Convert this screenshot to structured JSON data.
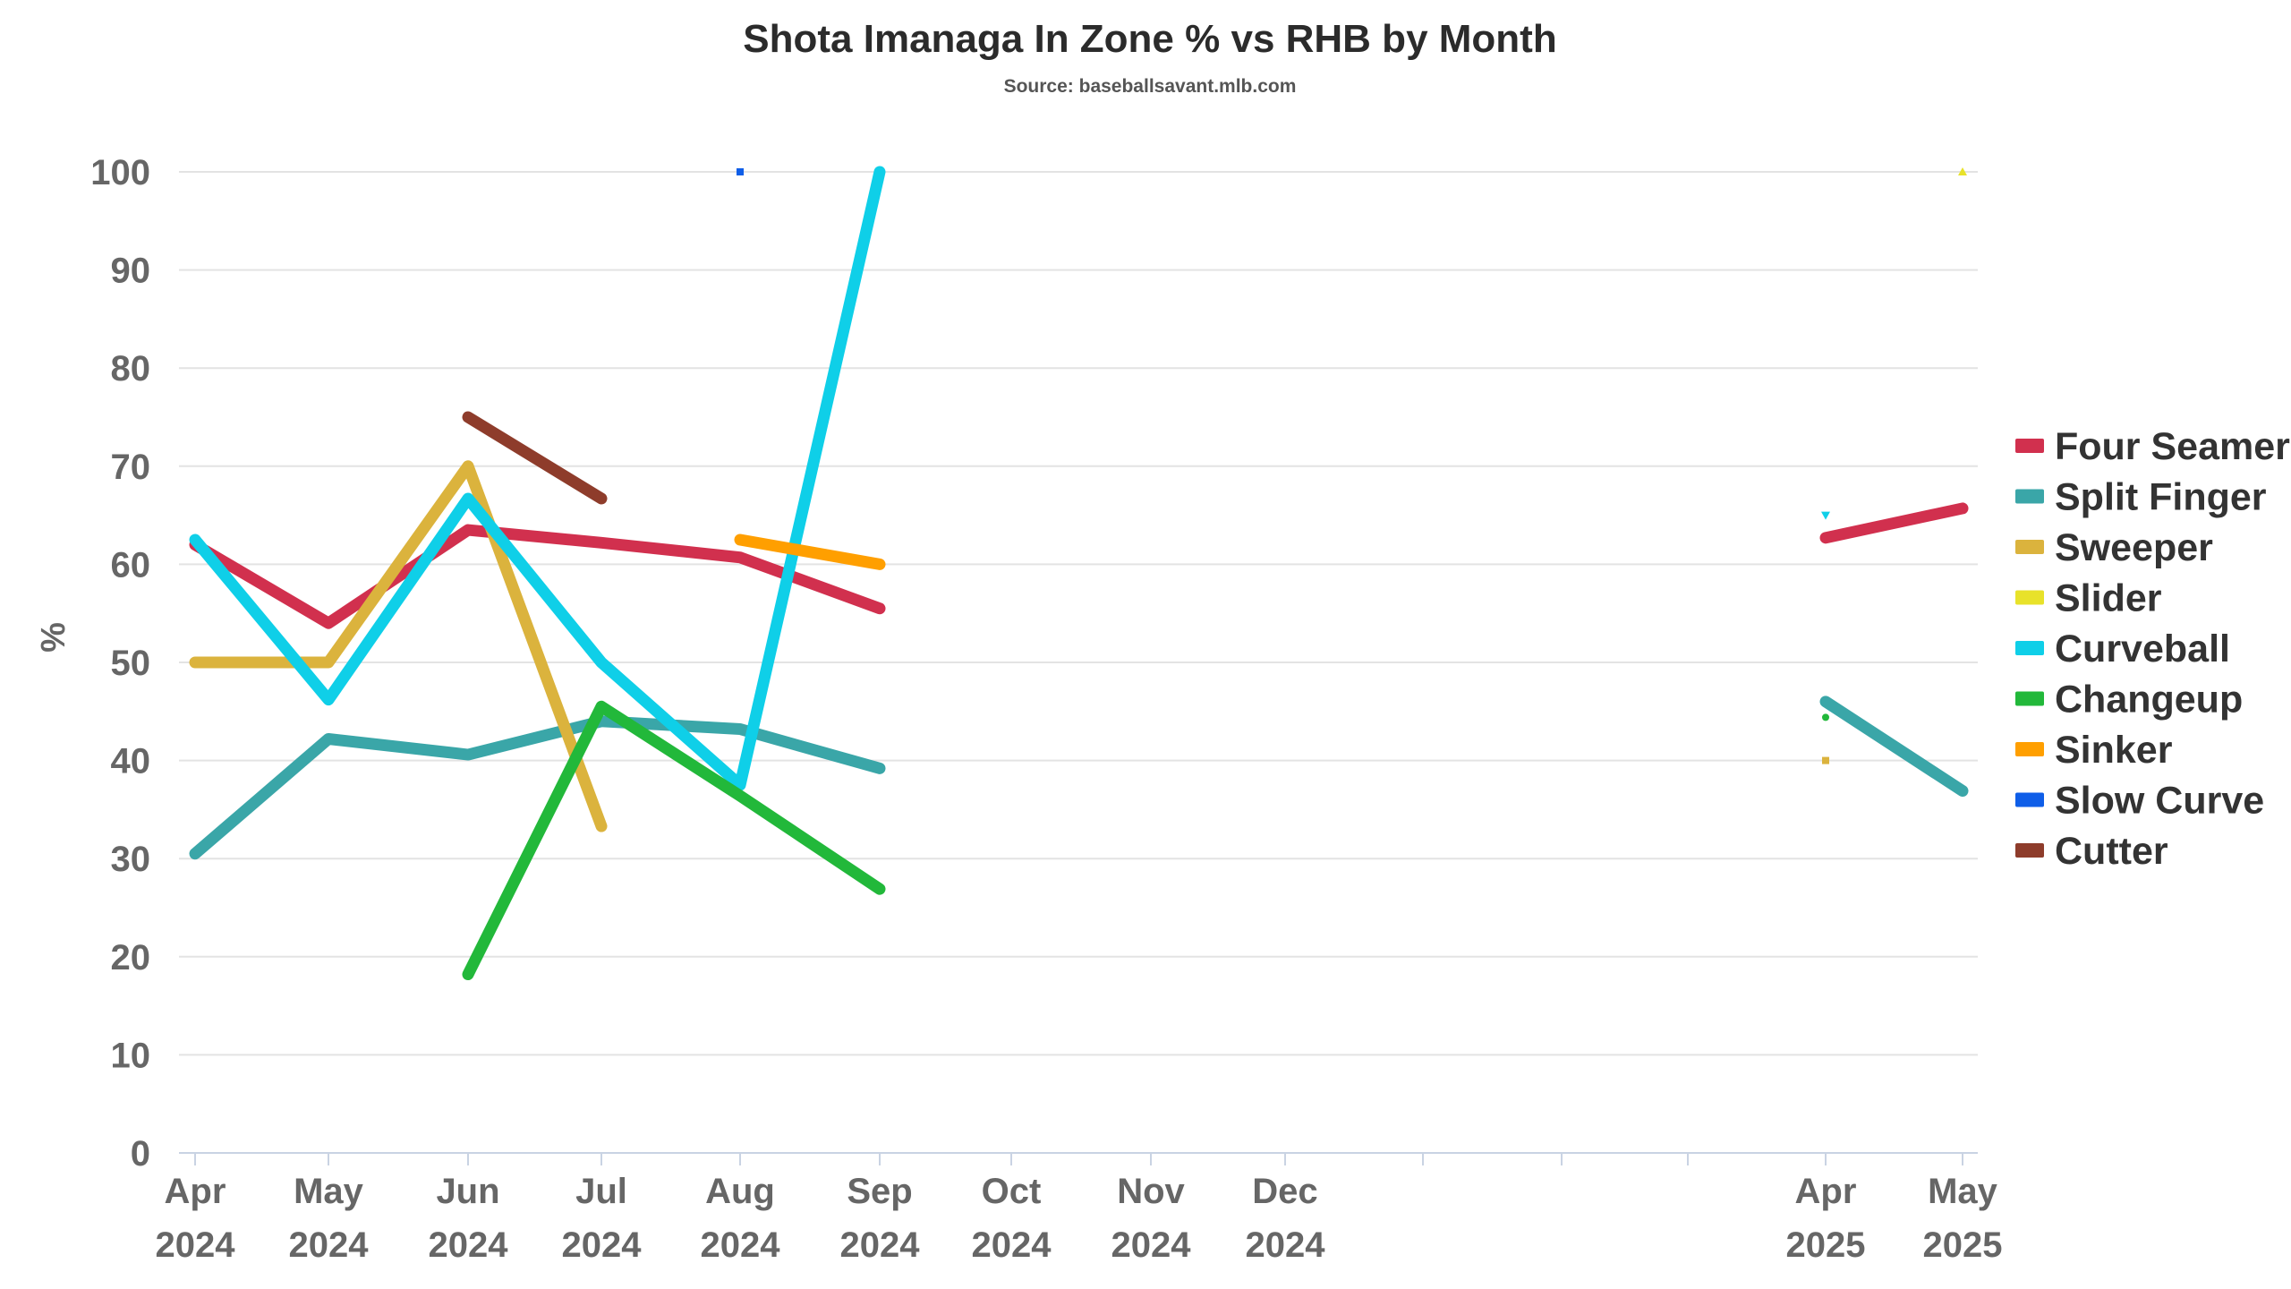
{
  "chart_data": {
    "type": "line",
    "title": "Shota Imanaga In Zone % vs RHB by Month",
    "subtitle": "Source: baseballsavant.mlb.com",
    "xlabel": "",
    "ylabel": "%",
    "ylim": [
      0,
      100
    ],
    "yticks": [
      0,
      10,
      20,
      30,
      40,
      50,
      60,
      70,
      80,
      90,
      100
    ],
    "grid": true,
    "legend_position": "right",
    "categories": [
      {
        "month": "Apr",
        "year": "2024",
        "labeled": true
      },
      {
        "month": "May",
        "year": "2024",
        "labeled": true
      },
      {
        "month": "Jun",
        "year": "2024",
        "labeled": true
      },
      {
        "month": "Jul",
        "year": "2024",
        "labeled": true
      },
      {
        "month": "Aug",
        "year": "2024",
        "labeled": true
      },
      {
        "month": "Sep",
        "year": "2024",
        "labeled": true
      },
      {
        "month": "Oct",
        "year": "2024",
        "labeled": true
      },
      {
        "month": "Nov",
        "year": "2024",
        "labeled": true
      },
      {
        "month": "Dec",
        "year": "2024",
        "labeled": true
      },
      {
        "month": "",
        "year": "",
        "labeled": false
      },
      {
        "month": "",
        "year": "",
        "labeled": false
      },
      {
        "month": "",
        "year": "",
        "labeled": false
      },
      {
        "month": "Apr",
        "year": "2025",
        "labeled": true
      },
      {
        "month": "May",
        "year": "2025",
        "labeled": true
      }
    ],
    "series": [
      {
        "name": "Four Seamer",
        "color": "#d1304e",
        "marker": "line",
        "values": [
          62,
          54,
          63.5,
          62.2,
          60.7,
          55.5,
          null,
          null,
          null,
          null,
          null,
          null,
          62.7,
          65.7
        ]
      },
      {
        "name": "Split Finger",
        "color": "#3aa6a8",
        "marker": "line",
        "values": [
          30.5,
          42.2,
          40.6,
          44,
          43.2,
          39.2,
          null,
          null,
          null,
          null,
          null,
          null,
          46,
          36.9
        ]
      },
      {
        "name": "Sweeper",
        "color": "#dbb33d",
        "marker": "square",
        "values": [
          50,
          50,
          70,
          33.3,
          null,
          null,
          null,
          null,
          null,
          null,
          null,
          null,
          40,
          null
        ]
      },
      {
        "name": "Slider",
        "color": "#e8e22a",
        "marker": "triangle",
        "values": [
          null,
          null,
          null,
          null,
          null,
          null,
          null,
          null,
          null,
          null,
          null,
          null,
          null,
          100
        ]
      },
      {
        "name": "Curveball",
        "color": "#0fcfe8",
        "marker": "triangle-down",
        "values": [
          62.5,
          46.2,
          66.7,
          50,
          37.5,
          100,
          null,
          null,
          null,
          null,
          null,
          null,
          65,
          null
        ]
      },
      {
        "name": "Changeup",
        "color": "#22b83a",
        "marker": "circle",
        "values": [
          null,
          null,
          18.2,
          45.5,
          36.4,
          26.9,
          null,
          null,
          null,
          null,
          null,
          null,
          44.4,
          null
        ]
      },
      {
        "name": "Sinker",
        "color": "#ff9f00",
        "marker": "line",
        "values": [
          null,
          null,
          null,
          null,
          62.5,
          60,
          null,
          null,
          null,
          null,
          null,
          null,
          null,
          null
        ]
      },
      {
        "name": "Slow Curve",
        "color": "#0f5ee8",
        "marker": "square",
        "values": [
          null,
          null,
          null,
          null,
          100,
          null,
          null,
          null,
          null,
          null,
          null,
          null,
          null,
          null
        ]
      },
      {
        "name": "Cutter",
        "color": "#8e3c2b",
        "marker": "line",
        "values": [
          null,
          null,
          75,
          66.7,
          null,
          null,
          null,
          null,
          null,
          null,
          null,
          null,
          null,
          null
        ]
      }
    ]
  }
}
